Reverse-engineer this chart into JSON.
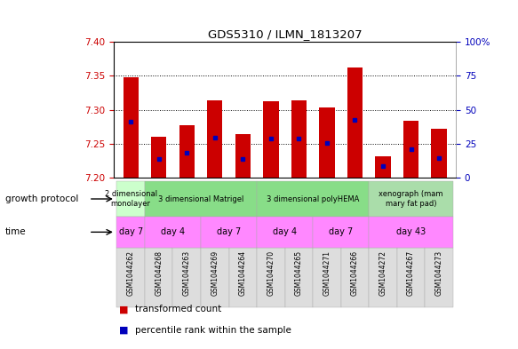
{
  "title": "GDS5310 / ILMN_1813207",
  "samples": [
    "GSM1044262",
    "GSM1044268",
    "GSM1044263",
    "GSM1044269",
    "GSM1044264",
    "GSM1044270",
    "GSM1044265",
    "GSM1044271",
    "GSM1044266",
    "GSM1044272",
    "GSM1044267",
    "GSM1044273"
  ],
  "bar_tops": [
    7.348,
    7.261,
    7.277,
    7.314,
    7.264,
    7.313,
    7.314,
    7.304,
    7.362,
    7.232,
    7.284,
    7.272
  ],
  "blue_pos": [
    7.283,
    7.228,
    7.237,
    7.259,
    7.228,
    7.258,
    7.258,
    7.251,
    7.286,
    7.218,
    7.242,
    7.229
  ],
  "ymin": 7.2,
  "ymax": 7.4,
  "yticks_left": [
    7.2,
    7.25,
    7.3,
    7.35,
    7.4
  ],
  "yticks_right": [
    0,
    25,
    50,
    75,
    100
  ],
  "bar_color": "#cc0000",
  "blue_color": "#0000bb",
  "bar_width": 0.55,
  "bg_color": "#ffffff",
  "gp_colors": [
    "#ccffcc",
    "#88dd88",
    "#88dd88",
    "#aaddaa"
  ],
  "gp_labels": [
    "2 dimensional\nmonolayer",
    "3 dimensional Matrigel",
    "3 dimensional polyHEMA",
    "xenograph (mam\nmary fat pad)"
  ],
  "gp_starts": [
    0,
    1,
    5,
    9
  ],
  "gp_ends": [
    1,
    5,
    9,
    12
  ],
  "time_color": "#ff88ff",
  "time_groups": [
    {
      "label": "day 7",
      "start": 0,
      "end": 1
    },
    {
      "label": "day 4",
      "start": 1,
      "end": 3
    },
    {
      "label": "day 7",
      "start": 3,
      "end": 5
    },
    {
      "label": "day 4",
      "start": 5,
      "end": 7
    },
    {
      "label": "day 7",
      "start": 7,
      "end": 9
    },
    {
      "label": "day 43",
      "start": 9,
      "end": 12
    }
  ],
  "left_label_color": "#cc0000",
  "right_label_color": "#0000bb"
}
